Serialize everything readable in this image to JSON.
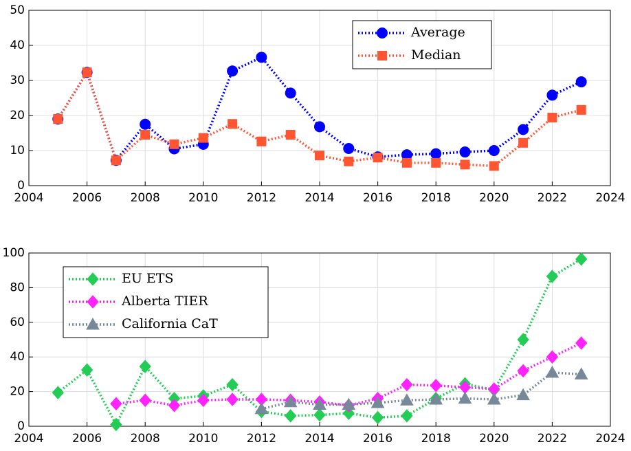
{
  "chart_data": [
    {
      "type": "line",
      "x": [
        2005,
        2006,
        2007,
        2008,
        2009,
        2010,
        2011,
        2012,
        2013,
        2014,
        2015,
        2016,
        2017,
        2018,
        2019,
        2020,
        2021,
        2022,
        2023
      ],
      "series": [
        {
          "name": "Average",
          "color": "#0000ff",
          "marker": "circle",
          "values": [
            19,
            32.3,
            7.2,
            17.5,
            10.5,
            11.8,
            32.7,
            36.6,
            26.4,
            16.8,
            10.6,
            8.2,
            8.8,
            9.1,
            9.6,
            10,
            16,
            25.8,
            29.6
          ]
        },
        {
          "name": "Median",
          "color": "#ff5533",
          "marker": "square",
          "values": [
            19,
            32.3,
            7.2,
            14.5,
            11.8,
            13.6,
            17.6,
            12.6,
            14.5,
            8.6,
            6.9,
            8,
            6.5,
            6.5,
            6,
            5.6,
            12.2,
            19.4,
            21.6
          ]
        }
      ],
      "xlim": [
        2004,
        2024
      ],
      "xticks": [
        2004,
        2006,
        2008,
        2010,
        2012,
        2014,
        2016,
        2018,
        2020,
        2022,
        2024
      ],
      "ylim": [
        0,
        50
      ],
      "yticks": [
        0,
        10,
        20,
        30,
        40,
        50
      ],
      "grid": true,
      "legend": "upper right"
    },
    {
      "type": "line",
      "x": [
        2005,
        2006,
        2007,
        2008,
        2009,
        2010,
        2011,
        2012,
        2013,
        2014,
        2015,
        2016,
        2017,
        2018,
        2019,
        2020,
        2021,
        2022,
        2023
      ],
      "series": [
        {
          "name": "EU ETS",
          "color": "#22cc55",
          "marker": "diamond",
          "values": [
            19.4,
            32.5,
            1,
            34.5,
            16,
            17.5,
            24,
            8.5,
            6,
            6.5,
            7.5,
            5,
            6,
            16,
            24.5,
            21,
            50,
            86.5,
            96.5
          ]
        },
        {
          "name": "Alberta TIER",
          "color": "#ff22ff",
          "marker": "diamond",
          "values": [
            null,
            null,
            13,
            15,
            12,
            15,
            15.5,
            15.5,
            15,
            14,
            12,
            16,
            24,
            23.5,
            22.5,
            21.5,
            32,
            40,
            48
          ]
        },
        {
          "name": "California CaT",
          "color": "#778899",
          "marker": "triangle",
          "values": [
            null,
            null,
            null,
            null,
            null,
            null,
            null,
            10,
            14,
            12.5,
            12.5,
            13.5,
            15,
            15.5,
            16,
            15.5,
            18,
            31,
            30
          ]
        }
      ],
      "xlim": [
        2004,
        2024
      ],
      "xticks": [
        2004,
        2006,
        2008,
        2010,
        2012,
        2014,
        2016,
        2018,
        2020,
        2022,
        2024
      ],
      "ylim": [
        0,
        100
      ],
      "yticks": [
        0,
        20,
        40,
        60,
        80,
        100
      ],
      "grid": true,
      "legend": "upper left"
    }
  ]
}
